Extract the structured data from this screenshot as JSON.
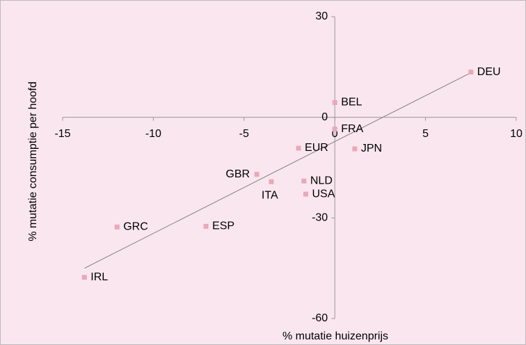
{
  "chart_data": {
    "type": "scatter",
    "x_label": "% mutatie huizenprijs",
    "y_label": "% mutatie consumptie per hoofd",
    "xlim": [
      -15,
      10
    ],
    "xticks": [
      -15,
      -10,
      -5,
      0,
      5,
      10
    ],
    "ylim": [
      -60,
      30
    ],
    "yticks": [
      -60,
      -30,
      0,
      30
    ],
    "color": "#e8a9b9",
    "point_labels": [
      "DEU",
      "BEL",
      "FRA",
      "EUR",
      "JPN",
      "GBR",
      "ITA",
      "NLD",
      "USA",
      "GRC",
      "ESP",
      "IRL"
    ],
    "x": [
      7.5,
      0,
      0,
      -2.0,
      1.1,
      -4.3,
      -3.5,
      -1.7,
      -1.6,
      -12.0,
      -7.1,
      -13.8
    ],
    "y": [
      13.5,
      4.4,
      -3.5,
      -9.2,
      -9.4,
      -17,
      -19.2,
      -19,
      -22.9,
      -32.7,
      -32.5,
      -47.7
    ],
    "trendline": {
      "x": [
        -13.8,
        7.5
      ],
      "y": [
        -45,
        13.3
      ],
      "color": "#808080"
    }
  }
}
